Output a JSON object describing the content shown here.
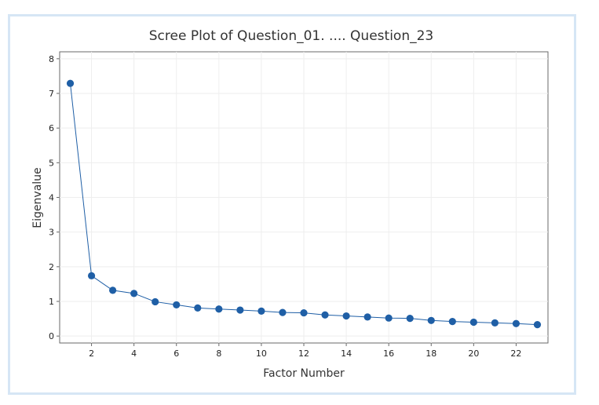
{
  "chart_data": {
    "type": "line",
    "title": "Scree Plot of Question_01. .... Question_23",
    "xlabel": "Factor Number",
    "ylabel": "Eigenvalue",
    "x": [
      1,
      2,
      3,
      4,
      5,
      6,
      7,
      8,
      9,
      10,
      11,
      12,
      13,
      14,
      15,
      16,
      17,
      18,
      19,
      20,
      21,
      22,
      23
    ],
    "values": [
      7.29,
      1.74,
      1.32,
      1.23,
      0.99,
      0.9,
      0.81,
      0.78,
      0.75,
      0.72,
      0.68,
      0.67,
      0.61,
      0.58,
      0.55,
      0.52,
      0.51,
      0.45,
      0.42,
      0.4,
      0.38,
      0.36,
      0.33
    ],
    "xlim": [
      0.5,
      23.5
    ],
    "ylim": [
      -0.2,
      8.2
    ],
    "xticks": [
      2,
      4,
      6,
      8,
      10,
      12,
      14,
      16,
      18,
      20,
      22
    ],
    "yticks": [
      0,
      1,
      2,
      3,
      4,
      5,
      6,
      7,
      8
    ],
    "grid": true,
    "colors": {
      "line": "#1f5fa6",
      "marker": "#1f5fa6",
      "grid": "#eeeeee",
      "frame": "#6a6a6a"
    }
  }
}
